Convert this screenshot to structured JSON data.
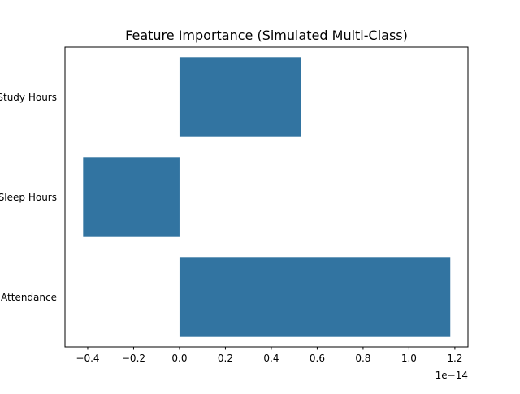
{
  "chart_data": {
    "type": "bar",
    "orientation": "horizontal",
    "title": "Feature Importance (Simulated Multi-Class)",
    "xlabel": "",
    "ylabel": "",
    "categories": [
      "Study Hours",
      "Sleep Hours",
      "Attendance"
    ],
    "values": [
      5.3e-15,
      -4.2e-15,
      1.18e-14
    ],
    "xlim": [
      -4.99e-15,
      1.257e-14
    ],
    "xticks": [
      -4e-15,
      -2e-15,
      0,
      2e-15,
      4e-15,
      6e-15,
      8e-15,
      1e-14,
      1.2e-14
    ],
    "xtick_labels": [
      "−0.4",
      "−0.2",
      "0.0",
      "0.2",
      "0.4",
      "0.6",
      "0.8",
      "1.0",
      "1.2"
    ],
    "x_offset_label": "1e−14",
    "bar_color": "#3274a1",
    "grid": false,
    "legend": "none"
  }
}
